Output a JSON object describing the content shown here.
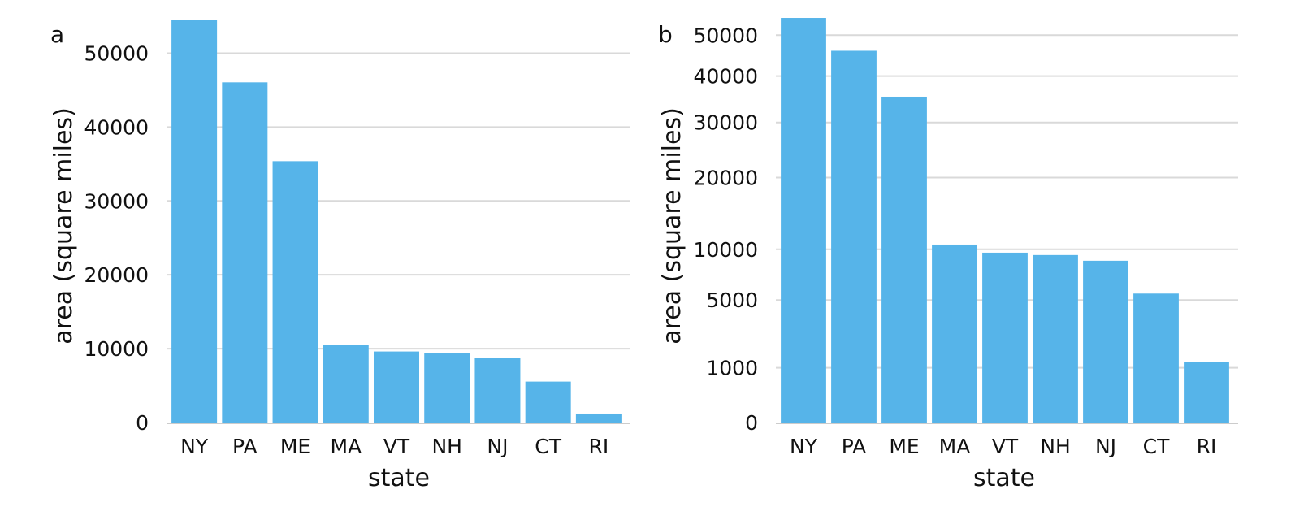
{
  "chart_data": [
    {
      "panel": "a",
      "type": "bar",
      "categories": [
        "NY",
        "PA",
        "ME",
        "MA",
        "VT",
        "NH",
        "NJ",
        "CT",
        "RI"
      ],
      "values": [
        54556,
        46055,
        35380,
        10554,
        9616,
        9349,
        8723,
        5543,
        1212
      ],
      "xlabel": "state",
      "ylabel": "area (square miles)",
      "ylim": [
        0,
        55000
      ],
      "yticks": [
        0,
        10000,
        20000,
        30000,
        40000,
        50000
      ],
      "ytick_labels": [
        "0",
        "10000",
        "20000",
        "30000",
        "40000",
        "50000"
      ],
      "scale": "linear",
      "grid": "horizontal",
      "colors": {
        "bar": "#56B4E9",
        "grid": "#d9d9d9",
        "axis": "#cccccc"
      }
    },
    {
      "panel": "b",
      "type": "bar",
      "categories": [
        "NY",
        "PA",
        "ME",
        "MA",
        "VT",
        "NH",
        "NJ",
        "CT",
        "RI"
      ],
      "values": [
        54556,
        46055,
        35380,
        10554,
        9616,
        9349,
        8723,
        5543,
        1212
      ],
      "xlabel": "state",
      "ylabel": "area (square miles)",
      "ylim": [
        0,
        55000
      ],
      "yticks": [
        0,
        1000,
        5000,
        10000,
        20000,
        30000,
        40000,
        50000
      ],
      "ytick_labels": [
        "0",
        "1000",
        "5000",
        "10000",
        "20000",
        "30000",
        "40000",
        "50000"
      ],
      "scale": "sqrt",
      "grid": "horizontal",
      "colors": {
        "bar": "#56B4E9",
        "grid": "#d9d9d9",
        "axis": "#cccccc"
      }
    }
  ]
}
